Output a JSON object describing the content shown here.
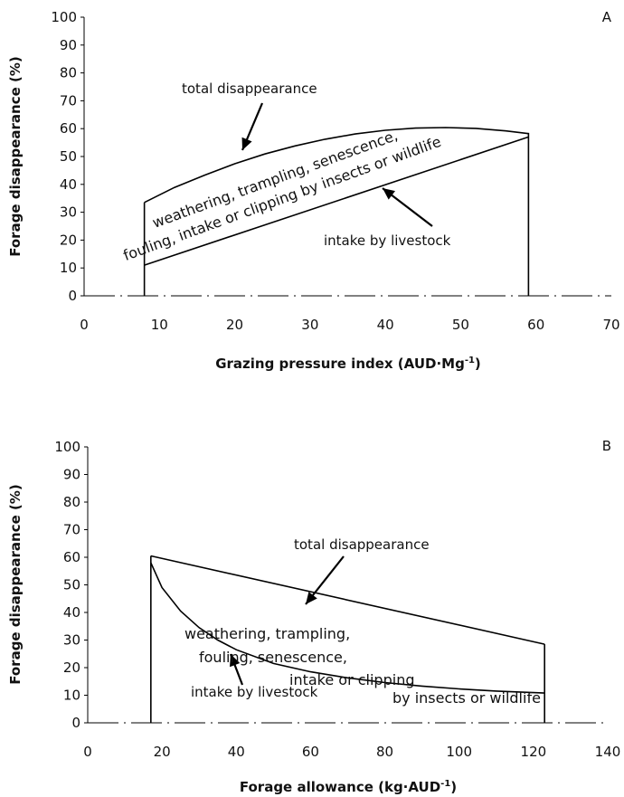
{
  "chart_data": [
    {
      "type": "line",
      "panel_label": "A",
      "xlabel": "Grazing pressure index (AUD·Mg",
      "xlabel_sup": "-1",
      "xlabel_end": ")",
      "ylabel": "Forage disappearance (%)",
      "xlim": [
        0,
        70
      ],
      "ylim": [
        0,
        100
      ],
      "xticks": [
        "0",
        "10",
        "20",
        "30",
        "40",
        "50",
        "60",
        "70"
      ],
      "yticks": [
        "0",
        "10",
        "20",
        "30",
        "40",
        "50",
        "60",
        "70",
        "80",
        "90",
        "100"
      ],
      "grid": false,
      "series": [
        {
          "key": "total",
          "x": [
            8,
            12,
            16,
            20,
            24,
            28,
            32,
            36,
            40,
            44,
            48,
            52,
            56,
            59
          ],
          "y": [
            33.5,
            38.9,
            43.3,
            47.4,
            50.9,
            53.8,
            56.2,
            58.1,
            59.4,
            60.2,
            60.4,
            60.1,
            59.2,
            58.2
          ]
        },
        {
          "key": "livestock",
          "x": [
            8,
            59
          ],
          "y": [
            11,
            57
          ]
        }
      ],
      "vlines": [
        {
          "x": 8,
          "y": [
            0,
            33.5
          ]
        },
        {
          "x": 59,
          "y": [
            0,
            58.5
          ]
        }
      ],
      "annotations": [
        {
          "id": "total_label",
          "text": "total disappearance"
        },
        {
          "id": "livestock_label",
          "text": "intake by livestock"
        }
      ],
      "region_label": [
        "weathering, trampling, senescence,",
        "fouling, intake or clipping by insects or wildlife"
      ]
    },
    {
      "type": "line",
      "panel_label": "B",
      "xlabel": "Forage allowance (kg·AUD",
      "xlabel_sup": "-1",
      "xlabel_end": ")",
      "ylabel": "Forage disappearance (%)",
      "xlim": [
        0,
        140
      ],
      "ylim": [
        0,
        100
      ],
      "xticks": [
        "0",
        "20",
        "40",
        "60",
        "80",
        "100",
        "120",
        "140"
      ],
      "yticks": [
        "0",
        "10",
        "20",
        "30",
        "40",
        "50",
        "60",
        "70",
        "80",
        "90",
        "100"
      ],
      "grid": false,
      "series": [
        {
          "key": "total",
          "x": [
            17,
            123
          ],
          "y": [
            60.5,
            28.5
          ]
        },
        {
          "key": "livestock",
          "x": [
            17,
            20,
            25,
            30,
            35,
            40,
            50,
            60,
            70,
            80,
            90,
            100,
            110,
            123
          ],
          "y": [
            58,
            49,
            40.5,
            34.5,
            30,
            26.5,
            21.5,
            18.5,
            16.3,
            14.6,
            13.3,
            12.3,
            11.5,
            10.8
          ]
        }
      ],
      "vlines": [
        {
          "x": 17,
          "y": [
            0,
            60.5
          ]
        },
        {
          "x": 123,
          "y": [
            0,
            28.5
          ]
        }
      ],
      "annotations": [
        {
          "id": "total_label",
          "text": "total disappearance"
        },
        {
          "id": "livestock_label",
          "text": "intake by livestock"
        }
      ],
      "region_label": [
        "weathering, trampling,",
        "fouling, senescence,",
        "intake or clipping",
        "by insects or wildlife"
      ]
    }
  ]
}
